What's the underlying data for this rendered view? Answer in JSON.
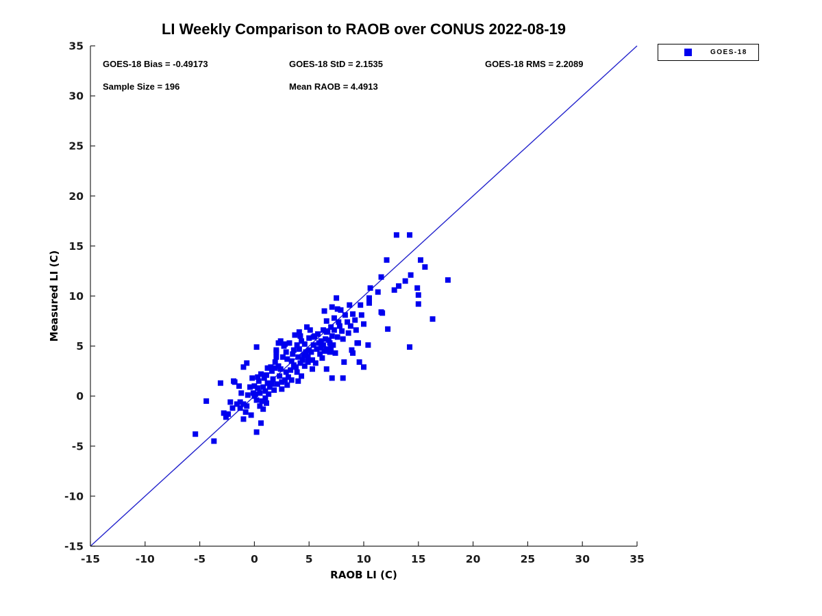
{
  "title": "LI Weekly Comparison to RAOB over CONUS 2022-08-19",
  "stats": {
    "bias": "GOES-18 Bias = -0.49173",
    "std": "GOES-18 StD = 2.1535",
    "rms": "GOES-18 RMS = 2.2089",
    "sample_size": "Sample Size = 196",
    "mean_raob": "Mean RAOB = 4.4913"
  },
  "legend": {
    "label": "GOES-18",
    "marker_color": "#0000ee",
    "position": "top-right-outside"
  },
  "colors": {
    "marker": "#0000ee",
    "identity_line": "#2222cc",
    "axis": "#262626",
    "tick_label": "#1a1a1a",
    "text": "#000000",
    "background": "#ffffff"
  },
  "chart_data": {
    "type": "scatter",
    "title": "LI Weekly Comparison to RAOB over CONUS 2022-08-19",
    "xlabel": "RAOB LI (C)",
    "ylabel": "Measured LI (C)",
    "xlim": [
      -15,
      35
    ],
    "ylim": [
      -15,
      35
    ],
    "x_ticks": [
      -15,
      -10,
      -5,
      0,
      5,
      10,
      15,
      20,
      25,
      30,
      35
    ],
    "y_ticks": [
      -15,
      -10,
      -5,
      0,
      5,
      10,
      15,
      20,
      25,
      30,
      35
    ],
    "grid": false,
    "legend_position": "top-right-outside",
    "reference_line": {
      "from": [
        -15,
        -15
      ],
      "to": [
        35,
        35
      ],
      "desc": "1:1 identity line"
    },
    "series": [
      {
        "name": "GOES-18",
        "marker": "square",
        "color": "#0000ee",
        "points": [
          [
            13.0,
            16.1
          ],
          [
            14.2,
            16.1
          ],
          [
            12.1,
            13.6
          ],
          [
            15.2,
            13.6
          ],
          [
            15.6,
            12.9
          ],
          [
            11.6,
            11.9
          ],
          [
            14.3,
            12.1
          ],
          [
            17.7,
            11.6
          ],
          [
            13.8,
            11.5
          ],
          [
            13.2,
            11.0
          ],
          [
            10.6,
            10.8
          ],
          [
            12.8,
            10.6
          ],
          [
            11.3,
            10.4
          ],
          [
            14.9,
            10.8
          ],
          [
            15.0,
            10.1
          ],
          [
            10.5,
            9.8
          ],
          [
            10.5,
            9.3
          ],
          [
            15.0,
            9.2
          ],
          [
            9.7,
            9.1
          ],
          [
            11.6,
            8.4
          ],
          [
            16.3,
            7.7
          ],
          [
            7.5,
            9.8
          ],
          [
            8.7,
            9.1
          ],
          [
            6.4,
            8.5
          ],
          [
            7.1,
            8.9
          ],
          [
            7.6,
            8.7
          ],
          [
            7.9,
            8.6
          ],
          [
            9.0,
            8.2
          ],
          [
            9.8,
            8.1
          ],
          [
            7.3,
            7.8
          ],
          [
            7.8,
            7.0
          ],
          [
            8.5,
            7.4
          ],
          [
            11.7,
            8.3
          ],
          [
            12.2,
            6.7
          ],
          [
            14.2,
            4.9
          ],
          [
            4.8,
            6.9
          ],
          [
            5.1,
            6.6
          ],
          [
            6.3,
            6.6
          ],
          [
            3.7,
            6.1
          ],
          [
            4.2,
            6.0
          ],
          [
            5.5,
            6.0
          ],
          [
            6.6,
            6.4
          ],
          [
            7.1,
            6.0
          ],
          [
            8.1,
            5.7
          ],
          [
            9.5,
            5.3
          ],
          [
            2.4,
            5.5
          ],
          [
            2.8,
            5.2
          ],
          [
            0.2,
            4.9
          ],
          [
            2.0,
            4.6
          ],
          [
            3.6,
            4.6
          ],
          [
            4.1,
            4.7
          ],
          [
            4.7,
            4.4
          ],
          [
            6.3,
            5.1
          ],
          [
            6.4,
            4.5
          ],
          [
            6.9,
            4.4
          ],
          [
            7.4,
            4.3
          ],
          [
            8.9,
            4.6
          ],
          [
            9.6,
            3.4
          ],
          [
            8.2,
            3.4
          ],
          [
            6.6,
            7.5
          ],
          [
            4.1,
            6.4
          ],
          [
            5.4,
            5.9
          ],
          [
            6.7,
            6.5
          ],
          [
            7.0,
            6.9
          ],
          [
            6.8,
            5.6
          ],
          [
            7.2,
            5.1
          ],
          [
            6.6,
            4.7
          ],
          [
            6.1,
            4.8
          ],
          [
            2.2,
            5.3
          ],
          [
            2.7,
            5.0
          ],
          [
            2.0,
            4.4
          ],
          [
            2.0,
            3.9
          ],
          [
            3.0,
            3.7
          ],
          [
            3.4,
            3.5
          ],
          [
            4.0,
            3.9
          ],
          [
            4.5,
            4.1
          ],
          [
            4.9,
            3.9
          ],
          [
            5.2,
            4.4
          ],
          [
            1.9,
            2.8
          ],
          [
            1.6,
            2.5
          ],
          [
            2.4,
            2.7
          ],
          [
            2.9,
            2.4
          ],
          [
            2.3,
            2.0
          ],
          [
            1.7,
            1.7
          ],
          [
            2.8,
            1.6
          ],
          [
            3.9,
            2.4
          ],
          [
            4.3,
            2.0
          ],
          [
            5.3,
            2.7
          ],
          [
            6.6,
            2.7
          ],
          [
            7.1,
            1.8
          ],
          [
            4.0,
            1.5
          ],
          [
            1.2,
            2.8
          ],
          [
            10.4,
            5.1
          ],
          [
            10.0,
            7.2
          ],
          [
            9.4,
            5.3
          ],
          [
            9.0,
            4.3
          ],
          [
            10.0,
            2.9
          ],
          [
            8.1,
            1.8
          ],
          [
            -3.1,
            1.3
          ],
          [
            -1.8,
            1.4
          ],
          [
            -1.4,
            1.0
          ],
          [
            -4.4,
            -0.5
          ],
          [
            -2.2,
            -0.6
          ],
          [
            -2.8,
            -1.7
          ],
          [
            -2.4,
            -1.8
          ],
          [
            -1.3,
            -0.6
          ],
          [
            -1.0,
            -0.8
          ],
          [
            -0.7,
            -1.0
          ],
          [
            -1.3,
            -1.2
          ],
          [
            -0.1,
            0.3
          ],
          [
            0.1,
            0.2
          ],
          [
            0.7,
            -0.5
          ],
          [
            -0.8,
            -1.6
          ],
          [
            -0.3,
            -1.9
          ],
          [
            -1.0,
            -2.3
          ],
          [
            0.6,
            -2.7
          ],
          [
            0.2,
            -3.6
          ],
          [
            -5.4,
            -3.8
          ],
          [
            -3.7,
            -4.5
          ],
          [
            -0.7,
            3.3
          ],
          [
            -1.0,
            2.9
          ],
          [
            -1.9,
            1.5
          ],
          [
            -0.2,
            1.8
          ],
          [
            -1.6,
            -0.8
          ],
          [
            0.3,
            0.8
          ],
          [
            0.5,
            0.3
          ],
          [
            0.8,
            0.9
          ],
          [
            1.0,
            0.5
          ],
          [
            1.2,
            1.3
          ],
          [
            0.0,
            1.0
          ],
          [
            0.4,
            1.5
          ],
          [
            0.9,
            1.8
          ],
          [
            1.4,
            0.9
          ],
          [
            1.6,
            1.2
          ],
          [
            0.2,
            -0.4
          ],
          [
            0.5,
            -1.0
          ],
          [
            1.0,
            -0.2
          ],
          [
            1.3,
            0.2
          ],
          [
            1.8,
            0.6
          ],
          [
            2.1,
            1.2
          ],
          [
            2.5,
            1.4
          ],
          [
            3.1,
            1.9
          ],
          [
            3.3,
            2.6
          ],
          [
            3.6,
            3.1
          ],
          [
            3.8,
            2.9
          ],
          [
            4.2,
            3.3
          ],
          [
            4.6,
            3.0
          ],
          [
            4.4,
            3.6
          ],
          [
            4.9,
            3.4
          ],
          [
            5.0,
            4.6
          ],
          [
            5.3,
            3.6
          ],
          [
            5.6,
            3.3
          ],
          [
            5.7,
            4.7
          ],
          [
            5.9,
            5.3
          ],
          [
            6.0,
            4.2
          ],
          [
            6.2,
            3.8
          ],
          [
            6.5,
            5.7
          ],
          [
            6.9,
            5.3
          ],
          [
            7.0,
            4.8
          ],
          [
            7.3,
            6.6
          ],
          [
            7.6,
            5.9
          ],
          [
            7.7,
            7.4
          ],
          [
            8.0,
            6.5
          ],
          [
            8.3,
            8.1
          ],
          [
            8.6,
            6.3
          ],
          [
            8.8,
            7.0
          ],
          [
            9.2,
            7.6
          ],
          [
            9.3,
            6.6
          ],
          [
            0.0,
            0.0
          ],
          [
            0.3,
            1.9
          ],
          [
            0.6,
            2.2
          ],
          [
            1.1,
            2.1
          ],
          [
            1.5,
            2.9
          ],
          [
            1.9,
            3.4
          ],
          [
            2.2,
            3.0
          ],
          [
            2.6,
            3.9
          ],
          [
            2.9,
            4.4
          ],
          [
            3.2,
            5.3
          ],
          [
            3.5,
            4.2
          ],
          [
            3.9,
            5.1
          ],
          [
            4.3,
            5.5
          ],
          [
            4.6,
            5.2
          ],
          [
            5.0,
            5.8
          ],
          [
            5.4,
            5.1
          ],
          [
            5.8,
            6.2
          ],
          [
            6.1,
            5.5
          ],
          [
            2.5,
            0.7
          ],
          [
            3.0,
            1.1
          ],
          [
            3.4,
            1.6
          ],
          [
            0.8,
            -1.3
          ],
          [
            -0.4,
            0.9
          ],
          [
            -0.6,
            0.1
          ],
          [
            -1.2,
            0.3
          ],
          [
            -2.0,
            -1.2
          ],
          [
            -2.6,
            -2.1
          ],
          [
            1.1,
            -0.7
          ]
        ]
      }
    ]
  }
}
